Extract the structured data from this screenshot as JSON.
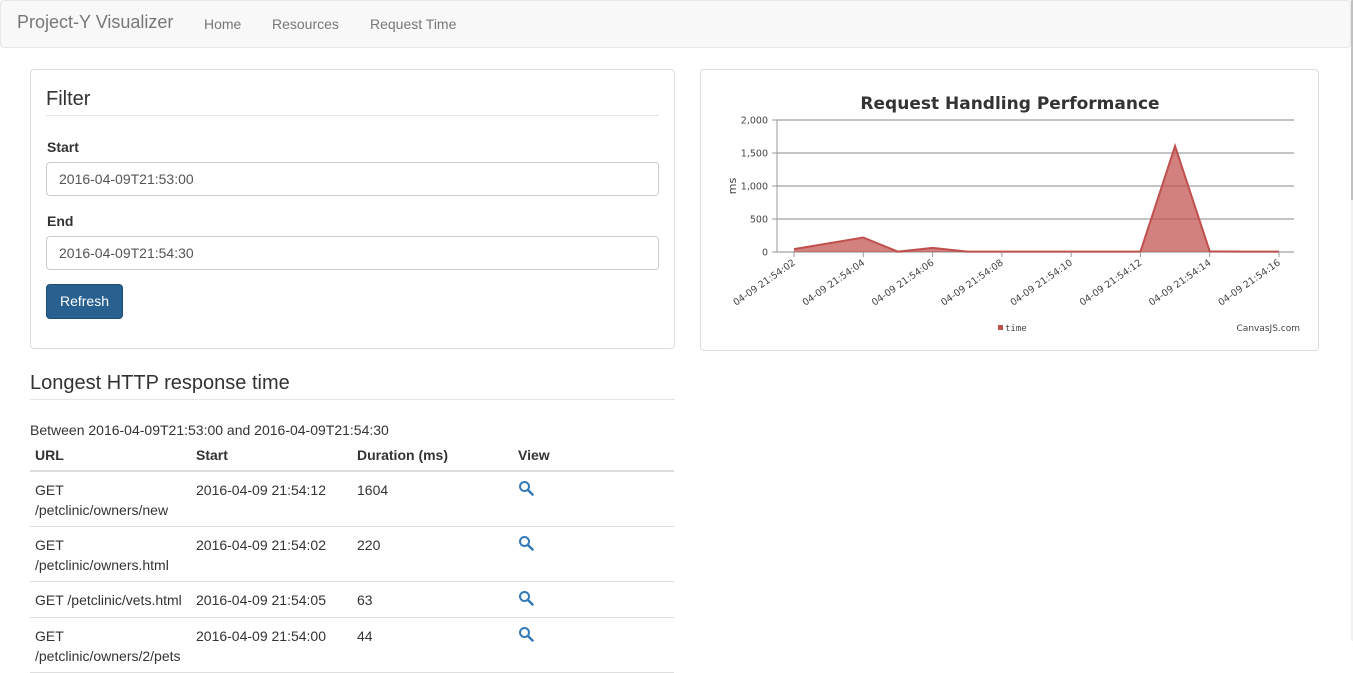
{
  "navbar": {
    "brand": "Project-Y Visualizer",
    "links": [
      "Home",
      "Resources",
      "Request Time"
    ]
  },
  "filter": {
    "title": "Filter",
    "start_label": "Start",
    "start_value": "2016-04-09T21:53:00",
    "end_label": "End",
    "end_value": "2016-04-09T21:54:30",
    "refresh_label": "Refresh"
  },
  "chart_data": {
    "type": "area",
    "title": "Request Handling Performance",
    "ylabel": "ms",
    "xlabel": "",
    "ylim": [
      0,
      2000
    ],
    "yticks": [
      "0",
      "500",
      "1,000",
      "1,500",
      "2,000"
    ],
    "xticks": [
      "04-09 21:54:02",
      "04-09 21:54:04",
      "04-09 21:54:06",
      "04-09 21:54:08",
      "04-09 21:54:10",
      "04-09 21:54:12",
      "04-09 21:54:14",
      "04-09 21:54:16"
    ],
    "xlim": [
      "04-09 21:54:02",
      "04-09 21:54:16"
    ],
    "x": [
      "04-09 21:54:02",
      "04-09 21:54:04",
      "04-09 21:54:05",
      "04-09 21:54:06",
      "04-09 21:54:07",
      "04-09 21:54:08",
      "04-09 21:54:09",
      "04-09 21:54:10",
      "04-09 21:54:11",
      "04-09 21:54:12",
      "04-09 21:54:13",
      "04-09 21:54:14",
      "04-09 21:54:15",
      "04-09 21:54:16"
    ],
    "series": [
      {
        "name": "time",
        "values": [
          44,
          220,
          5,
          63,
          5,
          5,
          5,
          5,
          5,
          5,
          1604,
          10,
          5,
          5
        ],
        "color": "#c0504e"
      }
    ],
    "grid": true,
    "legend": "bottom-center",
    "credit": "CanvasJS.com"
  },
  "longest": {
    "title": "Longest HTTP response time",
    "between_text": "Between 2016-04-09T21:53:00 and 2016-04-09T21:54:30",
    "columns": [
      "URL",
      "Start",
      "Duration (ms)",
      "View"
    ],
    "rows": [
      {
        "url_line1": "GET",
        "url_line2": "/petclinic/owners/new",
        "start": "2016-04-09 21:54:12",
        "duration": "1604"
      },
      {
        "url_line1": "GET",
        "url_line2": "/petclinic/owners.html",
        "start": "2016-04-09 21:54:02",
        "duration": "220"
      },
      {
        "url_line1": "GET /petclinic/vets.html",
        "url_line2": "",
        "start": "2016-04-09 21:54:05",
        "duration": "63"
      },
      {
        "url_line1": "GET",
        "url_line2": "/petclinic/owners/2/pets",
        "start": "2016-04-09 21:54:00",
        "duration": "44"
      }
    ],
    "view_icon": "search-icon"
  }
}
